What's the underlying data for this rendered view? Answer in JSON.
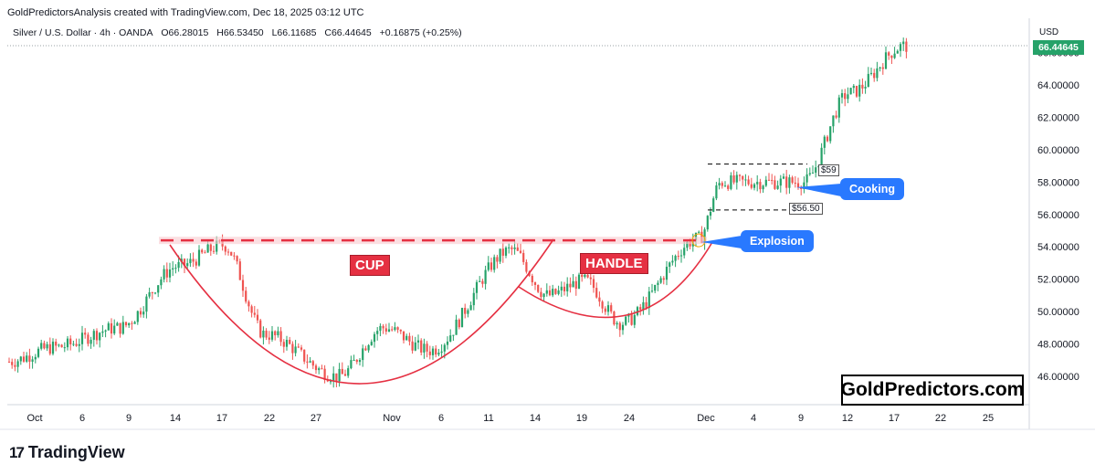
{
  "header": {
    "attribution": "GoldPredictorsAnalysis created with TradingView.com, Dec 18, 2025 03:12 UTC"
  },
  "symbol": {
    "name": "Silver / U.S. Dollar · 4h · OANDA",
    "open": "O66.28015",
    "high": "H66.53450",
    "low": "L66.11685",
    "close": "C66.44645",
    "change": "+0.16875 (+0.25%)"
  },
  "price_axis": {
    "currency": "USD",
    "last_price": "66.44645"
  },
  "annotations": {
    "cup": "CUP",
    "handle": "HANDLE",
    "explosion": "Explosion",
    "cooking": "Cooking",
    "upper_level": "$59",
    "lower_level": "$56.50",
    "brand": "GoldPredictors.com"
  },
  "footer": {
    "logo_text": "TradingView"
  },
  "colors": {
    "up": "#26a269",
    "down": "#ef5350",
    "curve": "#e53042",
    "neckline": "#e53042",
    "callout": "#2979ff"
  },
  "chart_data": {
    "type": "line",
    "title": "Silver / U.S. Dollar · 4h · OANDA",
    "xlabel": "",
    "ylabel": "USD",
    "ylim": [
      45,
      67
    ],
    "yticks": [
      46,
      48,
      50,
      52,
      54,
      56,
      58,
      60,
      62,
      64,
      66
    ],
    "ytick_labels": [
      "46.00000",
      "48.00000",
      "50.00000",
      "52.00000",
      "54.00000",
      "56.00000",
      "58.00000",
      "60.00000",
      "62.00000",
      "64.00000",
      "66.00000"
    ],
    "x_tick_labels": [
      "Oct",
      "6",
      "9",
      "14",
      "17",
      "22",
      "27",
      "Nov",
      "6",
      "11",
      "14",
      "19",
      "24",
      "Dec",
      "4",
      "9",
      "12",
      "17",
      "22",
      "25"
    ],
    "grid": false,
    "series": [
      {
        "name": "Silver / U.S. Dollar",
        "x": [
          "Oct",
          "6",
          "9",
          "14",
          "17",
          "22",
          "27",
          "Nov",
          "6",
          "11",
          "14",
          "19",
          "24",
          "Dec",
          "4",
          "9",
          "12",
          "17"
        ],
        "values": [
          46.8,
          48.2,
          49.5,
          52.5,
          54.0,
          49.0,
          48.5,
          49.0,
          48.5,
          52.0,
          51.0,
          50.5,
          50.0,
          54.5,
          57.8,
          58.2,
          62.5,
          66.4
        ]
      }
    ],
    "levels": [
      {
        "label": "neckline",
        "value": 54.4
      },
      {
        "label": "$59",
        "value": 59.0
      },
      {
        "label": "$56.50",
        "value": 56.5
      }
    ]
  }
}
